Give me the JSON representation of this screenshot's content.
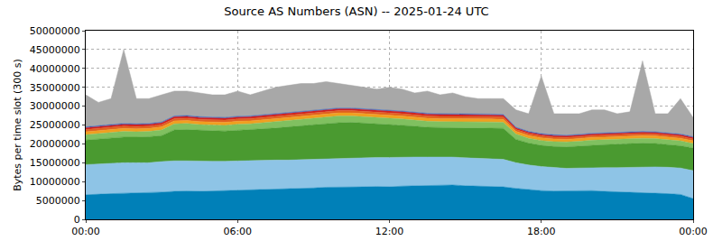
{
  "chart_data": {
    "type": "area",
    "title": "Source AS Numbers (ASN) -- 2025-01-24 UTC",
    "y_label": "Bytes per time slot (300 s)",
    "stacked": true,
    "grid": true,
    "x": [
      0,
      0.5,
      1,
      1.5,
      2,
      2.5,
      3,
      3.5,
      4,
      4.5,
      5,
      5.5,
      6,
      6.5,
      7,
      7.5,
      8,
      8.5,
      9,
      9.5,
      10,
      10.5,
      11,
      11.5,
      12,
      12.5,
      13,
      13.5,
      14,
      14.5,
      15,
      15.5,
      16,
      16.5,
      17,
      17.5,
      18,
      18.5,
      19,
      19.5,
      20,
      20.5,
      21,
      21.5,
      22,
      22.5,
      23,
      23.5,
      24
    ],
    "xlim": [
      0,
      24
    ],
    "xticks": [
      {
        "value": 0,
        "label": "00:00"
      },
      {
        "value": 6,
        "label": "06:00"
      },
      {
        "value": 12,
        "label": "12:00"
      },
      {
        "value": 18,
        "label": "18:00"
      },
      {
        "value": 24,
        "label": "00:00"
      }
    ],
    "ylim": [
      0,
      50000000
    ],
    "yticks": [
      0,
      5000000,
      10000000,
      15000000,
      20000000,
      25000000,
      30000000,
      35000000,
      40000000,
      45000000,
      50000000
    ],
    "series": [
      {
        "color": "#0080b8",
        "values": [
          6500000,
          6700000,
          6800000,
          6900000,
          7000000,
          7000000,
          7200000,
          7400000,
          7500000,
          7400000,
          7500000,
          7500000,
          7600000,
          7700000,
          7800000,
          8000000,
          8100000,
          8200000,
          8300000,
          8500000,
          8500000,
          8600000,
          8600000,
          8700000,
          8600000,
          8800000,
          8900000,
          9000000,
          9000000,
          9100000,
          8900000,
          8800000,
          8700000,
          8600000,
          8200000,
          7900000,
          7600000,
          7500000,
          7500000,
          7600000,
          7600000,
          7400000,
          7300000,
          7200000,
          7100000,
          7000000,
          6800000,
          6600000,
          5500000
        ]
      },
      {
        "color": "#8ec4e6",
        "values": [
          8000000,
          8000000,
          8100000,
          8100000,
          8000000,
          8000000,
          8100000,
          8100000,
          8000000,
          8000000,
          7900000,
          7900000,
          7900000,
          7800000,
          7800000,
          7700000,
          7600000,
          7600000,
          7600000,
          7500000,
          7600000,
          7700000,
          7700000,
          7700000,
          7800000,
          7700000,
          7600000,
          7500000,
          7500000,
          7400000,
          7400000,
          7400000,
          7400000,
          7300000,
          6800000,
          6500000,
          6400000,
          6200000,
          6000000,
          6000000,
          6100000,
          6300000,
          6400000,
          6600000,
          6800000,
          6900000,
          7000000,
          7000000,
          7400000
        ]
      },
      {
        "color": "#4a9a30",
        "values": [
          6500000,
          6600000,
          6700000,
          6800000,
          6800000,
          6900000,
          6900000,
          8200000,
          8300000,
          8200000,
          8100000,
          8000000,
          8100000,
          8200000,
          8400000,
          8500000,
          8800000,
          9000000,
          9200000,
          9400000,
          9500000,
          9400000,
          9200000,
          8900000,
          8800000,
          8500000,
          8200000,
          7900000,
          7800000,
          7800000,
          7900000,
          8000000,
          8100000,
          8200000,
          6200000,
          5800000,
          5600000,
          5600000,
          5700000,
          5800000,
          6000000,
          6100000,
          6200000,
          6200000,
          6300000,
          6200000,
          6000000,
          5900000,
          6000000
        ]
      },
      {
        "color": "#80c060",
        "values": [
          1400000,
          1400000,
          1400000,
          1500000,
          1400000,
          1400000,
          1500000,
          1600000,
          1600000,
          1500000,
          1500000,
          1500000,
          1600000,
          1600000,
          1600000,
          1700000,
          1700000,
          1700000,
          1700000,
          1800000,
          1800000,
          1700000,
          1700000,
          1700000,
          1700000,
          1600000,
          1600000,
          1600000,
          1600000,
          1600000,
          1600000,
          1600000,
          1600000,
          1600000,
          1400000,
          1300000,
          1300000,
          1300000,
          1300000,
          1300000,
          1300000,
          1300000,
          1300000,
          1300000,
          1300000,
          1300000,
          1300000,
          1300000,
          1200000
        ]
      },
      {
        "color": "#f0a020",
        "values": [
          800000,
          800000,
          800000,
          800000,
          800000,
          800000,
          800000,
          800000,
          800000,
          800000,
          800000,
          800000,
          800000,
          800000,
          800000,
          800000,
          800000,
          800000,
          800000,
          800000,
          800000,
          800000,
          800000,
          800000,
          800000,
          800000,
          800000,
          800000,
          800000,
          800000,
          800000,
          800000,
          800000,
          800000,
          700000,
          700000,
          700000,
          700000,
          700000,
          700000,
          700000,
          700000,
          700000,
          700000,
          700000,
          700000,
          700000,
          700000,
          700000
        ]
      },
      {
        "color": "#e06020",
        "values": [
          600000,
          600000,
          600000,
          600000,
          600000,
          600000,
          600000,
          600000,
          600000,
          600000,
          600000,
          600000,
          600000,
          600000,
          600000,
          600000,
          600000,
          600000,
          600000,
          600000,
          600000,
          600000,
          600000,
          600000,
          600000,
          600000,
          600000,
          600000,
          600000,
          600000,
          600000,
          600000,
          600000,
          600000,
          500000,
          500000,
          500000,
          500000,
          500000,
          500000,
          500000,
          500000,
          500000,
          500000,
          500000,
          500000,
          500000,
          500000,
          500000
        ]
      },
      {
        "color": "#d02020",
        "values": [
          500000,
          500000,
          500000,
          500000,
          500000,
          500000,
          500000,
          500000,
          500000,
          500000,
          500000,
          500000,
          500000,
          500000,
          500000,
          500000,
          500000,
          500000,
          500000,
          500000,
          500000,
          500000,
          500000,
          500000,
          500000,
          500000,
          500000,
          500000,
          500000,
          500000,
          500000,
          500000,
          500000,
          500000,
          400000,
          400000,
          400000,
          400000,
          400000,
          400000,
          400000,
          400000,
          400000,
          400000,
          400000,
          400000,
          400000,
          400000,
          400000
        ]
      },
      {
        "color": "#3060c0",
        "values": [
          200000,
          200000,
          200000,
          200000,
          200000,
          200000,
          200000,
          200000,
          200000,
          200000,
          200000,
          200000,
          200000,
          200000,
          200000,
          200000,
          200000,
          200000,
          200000,
          200000,
          200000,
          200000,
          200000,
          200000,
          200000,
          200000,
          200000,
          200000,
          200000,
          200000,
          200000,
          200000,
          200000,
          200000,
          200000,
          200000,
          200000,
          200000,
          200000,
          200000,
          200000,
          200000,
          200000,
          200000,
          200000,
          200000,
          200000,
          200000,
          200000
        ]
      },
      {
        "color": "#a8a8a8",
        "values": [
          8500000,
          6200000,
          6900000,
          19600000,
          6700000,
          6600000,
          7200000,
          6600000,
          6500000,
          6300000,
          5900000,
          6000000,
          6700000,
          5600000,
          6300000,
          7000000,
          7200000,
          7400000,
          7100000,
          7200000,
          6500000,
          6000000,
          5700000,
          5400000,
          6000000,
          5800000,
          5100000,
          5900000,
          5000000,
          5500000,
          4600000,
          4100000,
          4100000,
          4200000,
          4600000,
          4700000,
          15300000,
          5600000,
          5700000,
          5500000,
          6200000,
          6100000,
          5000000,
          5400000,
          18700000,
          4800000,
          5100000,
          9400000,
          5100000
        ]
      }
    ]
  }
}
